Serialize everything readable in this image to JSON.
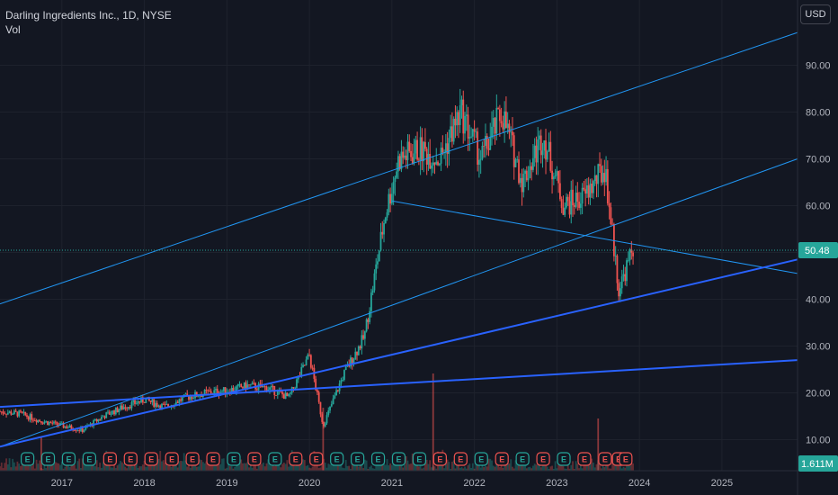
{
  "header": {
    "title": "Darling Ingredients Inc., 1D, NYSE",
    "volume_label": "Vol",
    "currency": "USD"
  },
  "chart_data": {
    "type": "candlestick",
    "title": "Darling Ingredients Inc., 1D, NYSE",
    "xlabel": "",
    "ylabel": "",
    "x_ticks": [
      "2017",
      "2018",
      "2019",
      "2020",
      "2021",
      "2022",
      "2023",
      "2024",
      "2025"
    ],
    "y_ticks": [
      10,
      20,
      30,
      40,
      50,
      60,
      70,
      80,
      90
    ],
    "ylim": [
      5,
      99
    ],
    "xlim": [
      "2016-04",
      "2025-12"
    ],
    "last_price": 50.48,
    "last_price_label": "50.48",
    "volume_label": "1.611M",
    "colors": {
      "up": "#26a69a",
      "down": "#ef5350",
      "trendline": "#2962ff",
      "channel": "#2196f3",
      "price_line": "#26a69a",
      "earnings_down": "#ef5350",
      "earnings_up": "#26a69a"
    },
    "price_path": [
      [
        "2016-04",
        16
      ],
      [
        "2016-07",
        15.5
      ],
      [
        "2016-10",
        14
      ],
      [
        "2017-01",
        13
      ],
      [
        "2017-04",
        12
      ],
      [
        "2017-07",
        15
      ],
      [
        "2017-10",
        17
      ],
      [
        "2018-01",
        18.5
      ],
      [
        "2018-04",
        17
      ],
      [
        "2018-07",
        19
      ],
      [
        "2018-10",
        20
      ],
      [
        "2019-01",
        20.5
      ],
      [
        "2019-04",
        21.5
      ],
      [
        "2019-07",
        21
      ],
      [
        "2019-10",
        19
      ],
      [
        "2020-01",
        28
      ],
      [
        "2020-03",
        13
      ],
      [
        "2020-06",
        24
      ],
      [
        "2020-09",
        32
      ],
      [
        "2020-12",
        58
      ],
      [
        "2021-02",
        70
      ],
      [
        "2021-05",
        72
      ],
      [
        "2021-08",
        70
      ],
      [
        "2021-11",
        80
      ],
      [
        "2022-02",
        70
      ],
      [
        "2022-05",
        80
      ],
      [
        "2022-08",
        65
      ],
      [
        "2022-11",
        75
      ],
      [
        "2023-02",
        60
      ],
      [
        "2023-05",
        62
      ],
      [
        "2023-08",
        68
      ],
      [
        "2023-10",
        42
      ],
      [
        "2023-12",
        50.48
      ]
    ],
    "trendlines": [
      {
        "style": "channel-upper",
        "points": [
          [
            "2016-04",
            39
          ],
          [
            "2025-12",
            97
          ]
        ]
      },
      {
        "style": "channel-lower",
        "points": [
          [
            "2016-04",
            8.5
          ],
          [
            "2025-12",
            70
          ]
        ]
      },
      {
        "style": "resistance",
        "points": [
          [
            "2021-01",
            61
          ],
          [
            "2025-12",
            45.5
          ]
        ]
      },
      {
        "style": "support",
        "points": [
          [
            "2016-04",
            8.5
          ],
          [
            "2025-12",
            48.5
          ]
        ]
      },
      {
        "style": "support",
        "points": [
          [
            "2016-04",
            17
          ],
          [
            "2025-12",
            27
          ]
        ]
      }
    ],
    "earnings_markers": {
      "label": "E",
      "events": [
        {
          "x": "2016-08",
          "result": "up"
        },
        {
          "x": "2016-11",
          "result": "up"
        },
        {
          "x": "2017-02",
          "result": "up"
        },
        {
          "x": "2017-05",
          "result": "up"
        },
        {
          "x": "2017-08",
          "result": "down"
        },
        {
          "x": "2017-11",
          "result": "down"
        },
        {
          "x": "2018-02",
          "result": "down"
        },
        {
          "x": "2018-05",
          "result": "down"
        },
        {
          "x": "2018-08",
          "result": "down"
        },
        {
          "x": "2018-11",
          "result": "down"
        },
        {
          "x": "2019-02",
          "result": "up"
        },
        {
          "x": "2019-05",
          "result": "down"
        },
        {
          "x": "2019-08",
          "result": "up"
        },
        {
          "x": "2019-11",
          "result": "down"
        },
        {
          "x": "2020-02",
          "result": "down"
        },
        {
          "x": "2020-05",
          "result": "up"
        },
        {
          "x": "2020-08",
          "result": "up"
        },
        {
          "x": "2020-11",
          "result": "up"
        },
        {
          "x": "2021-02",
          "result": "up"
        },
        {
          "x": "2021-05",
          "result": "up"
        },
        {
          "x": "2021-08",
          "result": "down"
        },
        {
          "x": "2021-11",
          "result": "down"
        },
        {
          "x": "2022-02",
          "result": "up"
        },
        {
          "x": "2022-05",
          "result": "down"
        },
        {
          "x": "2022-08",
          "result": "up"
        },
        {
          "x": "2022-11",
          "result": "down"
        },
        {
          "x": "2023-02",
          "result": "up"
        },
        {
          "x": "2023-05",
          "result": "down"
        },
        {
          "x": "2023-08",
          "result": "down"
        },
        {
          "x": "2023-10",
          "result": "down"
        },
        {
          "x": "2023-11",
          "result": "down"
        }
      ]
    }
  }
}
